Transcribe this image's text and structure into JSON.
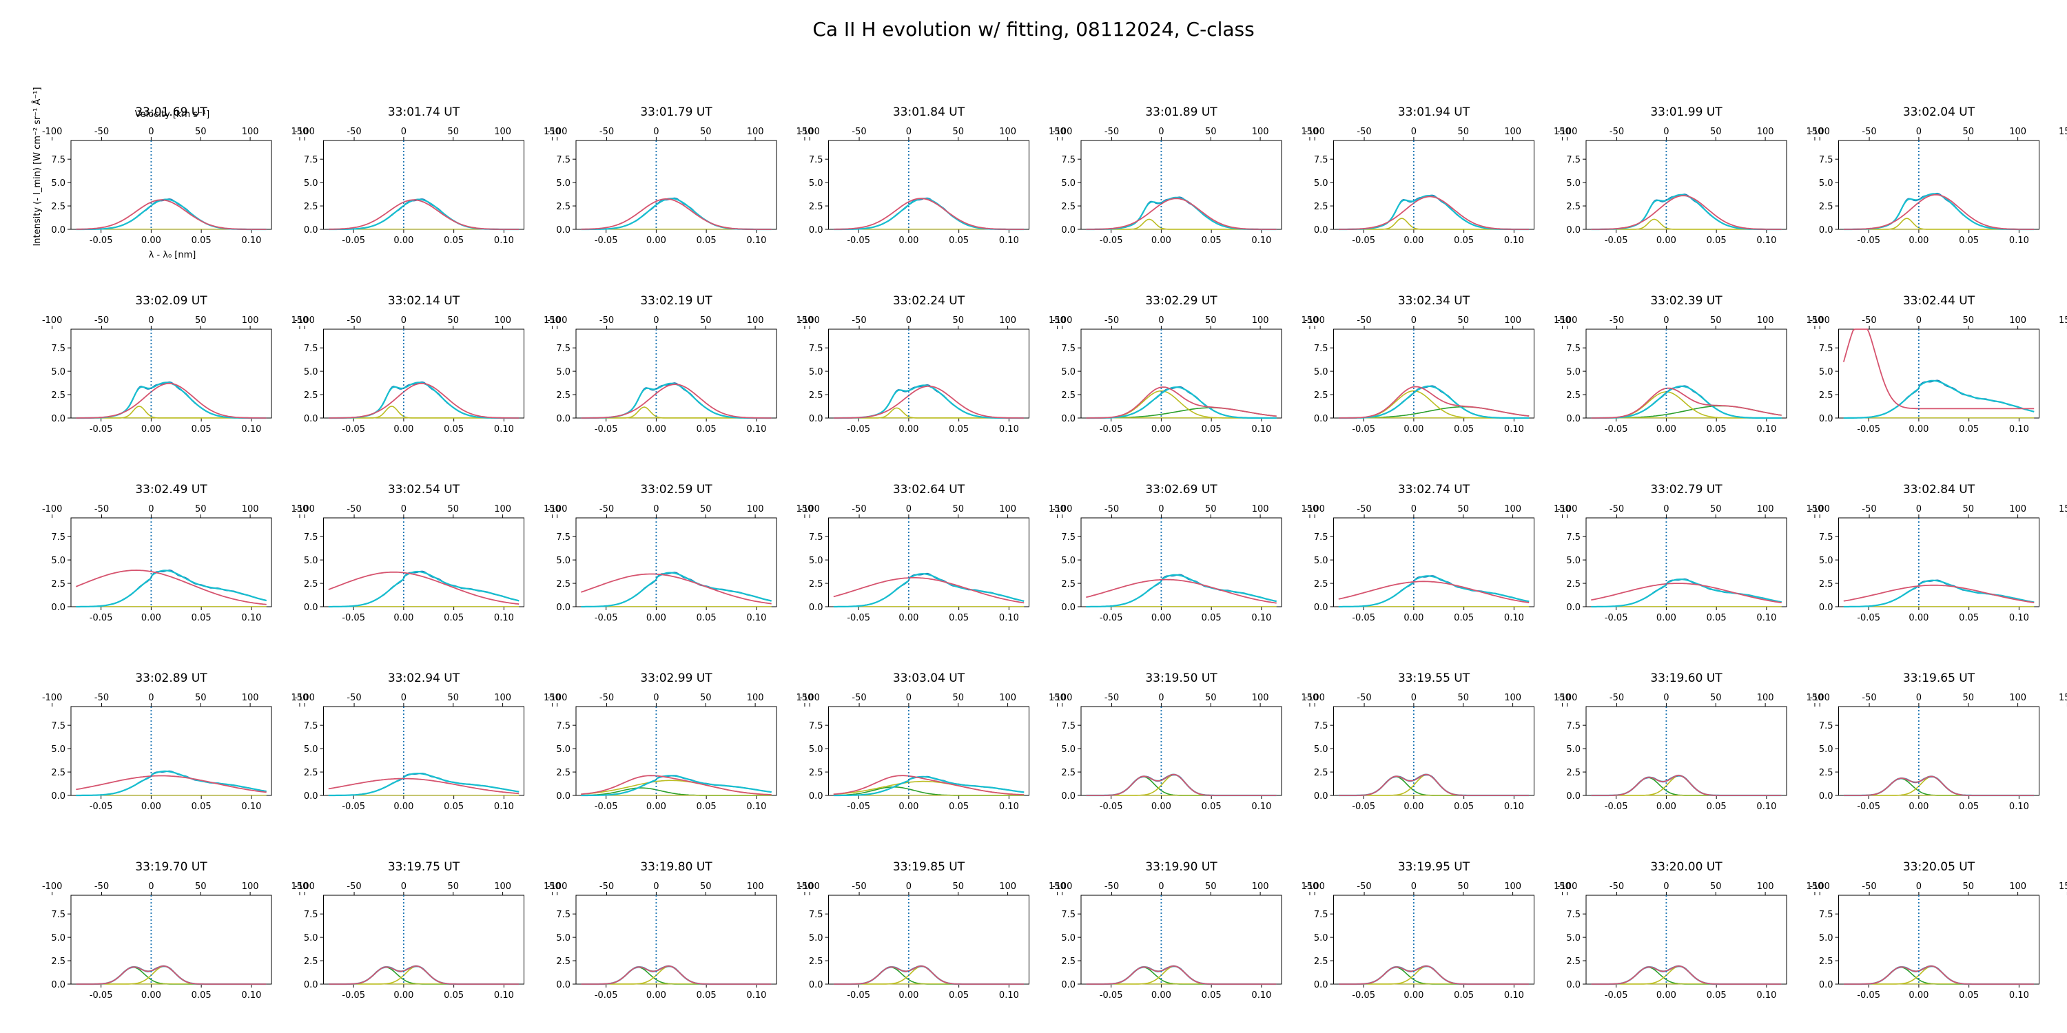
{
  "figure": {
    "title": "Ca II H evolution w/ fitting, 08112024, C-class"
  },
  "axes_labels": {
    "ylabel": "Intensity (- I_min) [W cm⁻² sr⁻¹ Å⁻¹]",
    "xlabel": "λ - λ₀ [nm]",
    "top_xlabel": "Velocity [km s⁻¹]"
  },
  "colors": {
    "observed": "#1f77b4",
    "smoothed": "#17becf",
    "fit_total": "#d6546f",
    "component_1": "#bcbd22",
    "component_2": "#7f7f7f",
    "component_3": "#2ca02c",
    "rest_line": "#1f77b4"
  },
  "chart_data": {
    "type": "line",
    "panel_count": 40,
    "grid": false,
    "xlim": [
      -0.08,
      0.12
    ],
    "ylim": [
      0,
      9.5
    ],
    "x_ticks": [
      -0.05,
      0.0,
      0.05,
      0.1
    ],
    "x_tick_labels": [
      "-0.05",
      "0.00",
      "0.05",
      "0.10"
    ],
    "y_ticks": [
      0.0,
      2.5,
      5.0,
      7.5
    ],
    "y_tick_labels": [
      "0.0",
      "2.5",
      "5.0",
      "7.5"
    ],
    "velocity_ticks": [
      -100,
      -50,
      0,
      50,
      100,
      150
    ],
    "velocity_tick_labels": [
      "-100",
      "-50",
      "0",
      "50",
      "100",
      "150"
    ],
    "velocity_per_nm": 1012.5,
    "rest_wavelength_offset": 0.0,
    "panels": [
      {
        "label": "33:01.69 UT",
        "profile": {
          "type": "broad",
          "amp": 3.2,
          "blue": 0.0
        },
        "fit": {
          "type": "single",
          "amp": 3.15,
          "center": 0.01,
          "width": 0.025
        }
      },
      {
        "label": "33:01.74 UT",
        "profile": {
          "type": "broad",
          "amp": 3.2,
          "blue": 0.0
        },
        "fit": {
          "type": "single",
          "amp": 3.15,
          "center": 0.01,
          "width": 0.025
        }
      },
      {
        "label": "33:01.79 UT",
        "profile": {
          "type": "broad",
          "amp": 3.3,
          "blue": 0.0
        },
        "fit": {
          "type": "single",
          "amp": 3.25,
          "center": 0.01,
          "width": 0.025
        }
      },
      {
        "label": "33:01.84 UT",
        "profile": {
          "type": "broad",
          "amp": 3.3,
          "blue": 0.0
        },
        "fit": {
          "type": "single",
          "amp": 3.3,
          "center": 0.012,
          "width": 0.025
        }
      },
      {
        "label": "33:01.89 UT",
        "profile": {
          "type": "broad",
          "amp": 3.4,
          "blue": 1.2
        },
        "fit": {
          "type": "single",
          "amp": 3.3,
          "center": 0.015,
          "width": 0.024
        }
      },
      {
        "label": "33:01.94 UT",
        "profile": {
          "type": "broad",
          "amp": 3.6,
          "blue": 1.3
        },
        "fit": {
          "type": "single",
          "amp": 3.5,
          "center": 0.016,
          "width": 0.024
        }
      },
      {
        "label": "33:01.99 UT",
        "profile": {
          "type": "broad",
          "amp": 3.7,
          "blue": 1.2
        },
        "fit": {
          "type": "single",
          "amp": 3.6,
          "center": 0.017,
          "width": 0.024
        }
      },
      {
        "label": "33:02.04 UT",
        "profile": {
          "type": "broad",
          "amp": 3.8,
          "blue": 1.3
        },
        "fit": {
          "type": "single",
          "amp": 3.7,
          "center": 0.017,
          "width": 0.024
        }
      },
      {
        "label": "33:02.09 UT",
        "profile": {
          "type": "broad",
          "amp": 3.8,
          "blue": 1.4
        },
        "fit": {
          "type": "single",
          "amp": 3.7,
          "center": 0.018,
          "width": 0.024
        }
      },
      {
        "label": "33:02.14 UT",
        "profile": {
          "type": "broad",
          "amp": 3.8,
          "blue": 1.4
        },
        "fit": {
          "type": "single",
          "amp": 3.7,
          "center": 0.018,
          "width": 0.024
        }
      },
      {
        "label": "33:02.19 UT",
        "profile": {
          "type": "broad",
          "amp": 3.7,
          "blue": 1.3
        },
        "fit": {
          "type": "single",
          "amp": 3.6,
          "center": 0.019,
          "width": 0.024
        }
      },
      {
        "label": "33:02.24 UT",
        "profile": {
          "type": "broad",
          "amp": 3.5,
          "blue": 1.2
        },
        "fit": {
          "type": "single",
          "amp": 3.4,
          "center": 0.02,
          "width": 0.024
        }
      },
      {
        "label": "33:02.29 UT",
        "profile": {
          "type": "broad",
          "amp": 3.3,
          "blue": 0.0
        },
        "fit": {
          "type": "double",
          "amp": 2.9,
          "center": 0.0,
          "width": 0.018,
          "amp2": 1.1,
          "center2": 0.05,
          "width2": 0.035
        }
      },
      {
        "label": "33:02.34 UT",
        "profile": {
          "type": "broad",
          "amp": 3.4,
          "blue": 0.0
        },
        "fit": {
          "type": "double",
          "amp": 2.9,
          "center": 0.0,
          "width": 0.018,
          "amp2": 1.2,
          "center2": 0.05,
          "width2": 0.035
        }
      },
      {
        "label": "33:02.39 UT",
        "profile": {
          "type": "broad",
          "amp": 3.4,
          "blue": 0.0
        },
        "fit": {
          "type": "double",
          "amp": 2.8,
          "center": 0.0,
          "width": 0.018,
          "amp2": 1.3,
          "center2": 0.055,
          "width2": 0.035
        }
      },
      {
        "label": "33:02.44 UT",
        "profile": {
          "type": "tail",
          "amp": 3.4,
          "blue": 0.0
        },
        "fit": {
          "type": "runaway",
          "amp": 9.5,
          "center": -0.058,
          "width": 0.01
        }
      },
      {
        "label": "33:02.49 UT",
        "profile": {
          "type": "tail",
          "amp": 3.3,
          "blue": 0.0
        },
        "fit": {
          "type": "single",
          "amp": 3.9,
          "center": -0.015,
          "width": 0.055
        }
      },
      {
        "label": "33:02.54 UT",
        "profile": {
          "type": "tail",
          "amp": 3.2,
          "blue": 0.0
        },
        "fit": {
          "type": "single",
          "amp": 3.7,
          "center": -0.01,
          "width": 0.055
        }
      },
      {
        "label": "33:02.59 UT",
        "profile": {
          "type": "tail",
          "amp": 3.1,
          "blue": 0.0
        },
        "fit": {
          "type": "single",
          "amp": 3.5,
          "center": -0.005,
          "width": 0.055
        }
      },
      {
        "label": "33:02.64 UT",
        "profile": {
          "type": "tail",
          "amp": 3.0,
          "blue": 0.0
        },
        "fit": {
          "type": "single",
          "amp": 3.1,
          "center": 0.005,
          "width": 0.055
        }
      },
      {
        "label": "33:02.69 UT",
        "profile": {
          "type": "tail",
          "amp": 2.9,
          "blue": 0.0
        },
        "fit": {
          "type": "single",
          "amp": 2.9,
          "center": 0.005,
          "width": 0.055
        }
      },
      {
        "label": "33:02.74 UT",
        "profile": {
          "type": "tail",
          "amp": 2.8,
          "blue": 0.0
        },
        "fit": {
          "type": "single",
          "amp": 2.7,
          "center": 0.01,
          "width": 0.055
        }
      },
      {
        "label": "33:02.79 UT",
        "profile": {
          "type": "tail",
          "amp": 2.5,
          "blue": 0.0
        },
        "fit": {
          "type": "single",
          "amp": 2.5,
          "center": 0.012,
          "width": 0.055
        }
      },
      {
        "label": "33:02.84 UT",
        "profile": {
          "type": "tail",
          "amp": 2.4,
          "blue": 0.0
        },
        "fit": {
          "type": "single",
          "amp": 2.3,
          "center": 0.015,
          "width": 0.055
        }
      },
      {
        "label": "33:02.89 UT",
        "profile": {
          "type": "tail",
          "amp": 2.2,
          "blue": 0.0
        },
        "fit": {
          "type": "single",
          "amp": 2.1,
          "center": 0.01,
          "width": 0.055
        }
      },
      {
        "label": "33:02.94 UT",
        "profile": {
          "type": "tail",
          "amp": 2.0,
          "blue": 0.0
        },
        "fit": {
          "type": "single",
          "amp": 1.8,
          "center": 0.0,
          "width": 0.055
        }
      },
      {
        "label": "33:02.99 UT",
        "profile": {
          "type": "tail",
          "amp": 1.8,
          "blue": 0.0
        },
        "fit": {
          "type": "double",
          "amp": 1.6,
          "center": 0.015,
          "width": 0.04,
          "amp2": 0.8,
          "center2": -0.015,
          "width2": 0.02
        }
      },
      {
        "label": "33:03.04 UT",
        "profile": {
          "type": "tail",
          "amp": 1.7,
          "blue": 0.0
        },
        "fit": {
          "type": "double",
          "amp": 1.5,
          "center": 0.015,
          "width": 0.04,
          "amp2": 0.9,
          "center2": -0.015,
          "width2": 0.02
        }
      },
      {
        "label": "33:19.50 UT",
        "profile": {
          "type": "dp",
          "amp": 2.2,
          "blue": 2.0
        },
        "fit": {
          "type": "dp",
          "amp": 2.2,
          "center": 0.013,
          "width": 0.011,
          "amp2": 2.0,
          "center2": -0.018,
          "width2": 0.011
        }
      },
      {
        "label": "33:19.55 UT",
        "profile": {
          "type": "dp",
          "amp": 2.2,
          "blue": 2.0
        },
        "fit": {
          "type": "dp",
          "amp": 2.2,
          "center": 0.013,
          "width": 0.011,
          "amp2": 2.0,
          "center2": -0.018,
          "width2": 0.011
        }
      },
      {
        "label": "33:19.60 UT",
        "profile": {
          "type": "dp",
          "amp": 2.1,
          "blue": 1.9
        },
        "fit": {
          "type": "dp",
          "amp": 2.1,
          "center": 0.013,
          "width": 0.011,
          "amp2": 1.9,
          "center2": -0.018,
          "width2": 0.011
        }
      },
      {
        "label": "33:19.65 UT",
        "profile": {
          "type": "dp",
          "amp": 2.0,
          "blue": 1.8
        },
        "fit": {
          "type": "dp",
          "amp": 2.0,
          "center": 0.013,
          "width": 0.011,
          "amp2": 1.8,
          "center2": -0.018,
          "width2": 0.011
        }
      },
      {
        "label": "33:19.70 UT",
        "profile": {
          "type": "dp",
          "amp": 1.9,
          "blue": 1.8
        },
        "fit": {
          "type": "dp",
          "amp": 1.9,
          "center": 0.013,
          "width": 0.011,
          "amp2": 1.8,
          "center2": -0.018,
          "width2": 0.011
        }
      },
      {
        "label": "33:19.75 UT",
        "profile": {
          "type": "dp",
          "amp": 1.9,
          "blue": 1.8
        },
        "fit": {
          "type": "dp",
          "amp": 1.9,
          "center": 0.013,
          "width": 0.011,
          "amp2": 1.8,
          "center2": -0.018,
          "width2": 0.011
        }
      },
      {
        "label": "33:19.80 UT",
        "profile": {
          "type": "dp",
          "amp": 1.9,
          "blue": 1.8
        },
        "fit": {
          "type": "dp",
          "amp": 1.9,
          "center": 0.013,
          "width": 0.011,
          "amp2": 1.8,
          "center2": -0.018,
          "width2": 0.011
        }
      },
      {
        "label": "33:19.85 UT",
        "profile": {
          "type": "dp",
          "amp": 1.9,
          "blue": 1.8
        },
        "fit": {
          "type": "dp",
          "amp": 1.9,
          "center": 0.013,
          "width": 0.011,
          "amp2": 1.8,
          "center2": -0.018,
          "width2": 0.011
        }
      },
      {
        "label": "33:19.90 UT",
        "profile": {
          "type": "dp",
          "amp": 1.9,
          "blue": 1.8
        },
        "fit": {
          "type": "dp",
          "amp": 1.9,
          "center": 0.013,
          "width": 0.011,
          "amp2": 1.8,
          "center2": -0.018,
          "width2": 0.011
        }
      },
      {
        "label": "33:19.95 UT",
        "profile": {
          "type": "dp",
          "amp": 1.9,
          "blue": 1.8
        },
        "fit": {
          "type": "dp",
          "amp": 1.9,
          "center": 0.013,
          "width": 0.011,
          "amp2": 1.8,
          "center2": -0.018,
          "width2": 0.011
        }
      },
      {
        "label": "33:20.00 UT",
        "profile": {
          "type": "dp",
          "amp": 1.9,
          "blue": 1.8
        },
        "fit": {
          "type": "dp",
          "amp": 1.9,
          "center": 0.013,
          "width": 0.011,
          "amp2": 1.8,
          "center2": -0.018,
          "width2": 0.011
        }
      },
      {
        "label": "33:20.05 UT",
        "profile": {
          "type": "dp",
          "amp": 1.9,
          "blue": 1.8
        },
        "fit": {
          "type": "dp",
          "amp": 1.9,
          "center": 0.013,
          "width": 0.011,
          "amp2": 1.8,
          "center2": -0.018,
          "width2": 0.011
        }
      }
    ]
  }
}
